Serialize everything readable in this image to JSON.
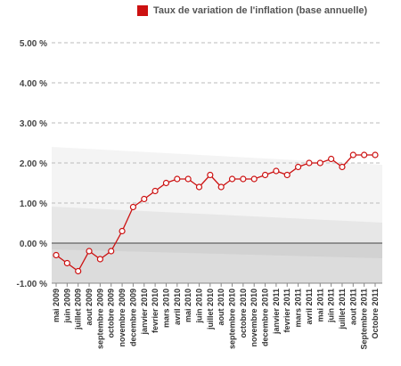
{
  "chart_data": {
    "type": "line",
    "title": "",
    "xlabel": "",
    "ylabel": "",
    "legend_position": "top-right",
    "ylim": [
      -1.0,
      5.0
    ],
    "y_ticks": [
      {
        "value": 5,
        "label": "5.00 %"
      },
      {
        "value": 4,
        "label": "4.00 %"
      },
      {
        "value": 3,
        "label": "3.00 %"
      },
      {
        "value": 2,
        "label": "2.00 %"
      },
      {
        "value": 1,
        "label": "1.00 %"
      },
      {
        "value": 0,
        "label": "0.00 %"
      },
      {
        "value": -1,
        "label": "-1.00 %"
      }
    ],
    "grid": "horizontal dashed",
    "categories": [
      "mai 2009",
      "juin 2009",
      "juillet 2009",
      "aout 2009",
      "septembre 2009",
      "octobre 2009",
      "novembre 2009",
      "decembre 2009",
      "janvier 2010",
      "fevrier 2010",
      "mars 2010",
      "avril 2010",
      "mai 2010",
      "juin 2010",
      "juillet 2010",
      "aout 2010",
      "septembre 2010",
      "octobre 2010",
      "novembre 2010",
      "decembre 2010",
      "janvier 2011",
      "fevrier 2011",
      "mars 2011",
      "avril 2011",
      "mai 2011",
      "juin 2011",
      "juillet 2011",
      "aout 2011",
      "Septembre 2011",
      "Octobre 2011"
    ],
    "series": [
      {
        "name": "Taux de variation de l'inflation (base annuelle)",
        "color": "#cc1111",
        "values": [
          -0.3,
          -0.5,
          -0.7,
          -0.2,
          -0.4,
          -0.2,
          0.3,
          0.9,
          1.1,
          1.3,
          1.5,
          1.6,
          1.6,
          1.4,
          1.7,
          1.4,
          1.6,
          1.6,
          1.6,
          1.7,
          1.8,
          1.7,
          1.9,
          2.0,
          2.0,
          2.1,
          1.9,
          2.2,
          2.2,
          2.2
        ]
      }
    ]
  }
}
